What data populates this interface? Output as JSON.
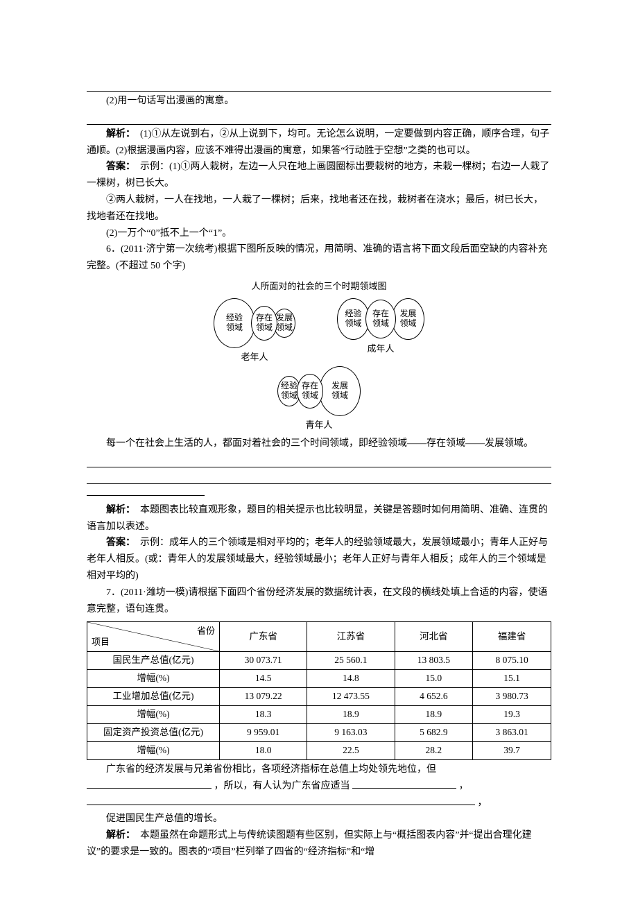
{
  "top": {
    "q2": "(2)用一句话写出漫画的寓意。",
    "ana_label": "解析：",
    "ana_text": "(1)①从左说到右，②从上说到下，均可。无论怎么说明，一定要做到内容正确，顺序合理，句子通顺。(2)根据漫画内容，应该不难得出漫画的寓意，如果答“行动胜于空想”之类的也可以。",
    "ans_label": "答案：",
    "ans1": "示例：(1)①两人栽树，左边一人只在地上画圆圈标出要栽树的地方，未栽一棵树；右边一人栽了一棵树，树已长大。",
    "ans2": "②两人栽树，一人在找地，一人栽了一棵树；后来，找地者还在找，栽树者在浇水；最后，树已长大，找地者还在找地。",
    "ans3": "(2)一万个“0”抵不上一个“1”。"
  },
  "q6": {
    "stem1": "6．(2011·济宁第一次统考)根据下图所反映的情况，用简明、准确的语言将下面文段后面空缺的内容补充完整。(不超过 50 个字)",
    "diagram_title": "人所面对的社会的三个时期领域图",
    "labels": {
      "exp": "经验\n领域",
      "exist": "存在\n领域",
      "dev": "发展\n领域"
    },
    "caps": {
      "old": "老年人",
      "adult": "成年人",
      "young": "青年人"
    },
    "lead": "每一个在社会上生活的人，都面对着社会的三个时间领域，即经验领域——存在领域——发展领域。",
    "ana_label": "解析：",
    "ana_text": "本题图表比较直观形象，题目的相关提示也比较明显，关键是答题时如何用简明、准确、连贯的语言加以表述。",
    "ans_label": "答案：",
    "ans_text": "示例：成年人的三个领域是相对平均的；老年人的经验领域最大，发展领域最小；青年人正好与老年人相反。(或：青年人的发展领域最大，经验领域最小；老年人正好与青年人相反；成年人的三个领域是相对平均的)"
  },
  "q7": {
    "stem": "7．(2011·潍坊一模)请根据下面四个省份经济发展的数据统计表，在文段的横线处填上合适的内容，使语意完整，语句连贯。",
    "header": {
      "diag_top": "省份",
      "diag_bot": "项目",
      "cols": [
        "广东省",
        "江苏省",
        "河北省",
        "福建省"
      ]
    },
    "rows": [
      {
        "label": "国民生产总值(亿元)",
        "v": [
          "30 073.71",
          "25 560.1",
          "13 803.5",
          "8 075.10"
        ]
      },
      {
        "label": "增幅(%)",
        "v": [
          "14.5",
          "14.8",
          "15.0",
          "15.1"
        ]
      },
      {
        "label": "工业增加总值(亿元)",
        "v": [
          "13 079.22",
          "12 473.55",
          "4 652.6",
          "3 980.73"
        ]
      },
      {
        "label": "增幅(%)",
        "v": [
          "18.3",
          "18.9",
          "18.9",
          "19.3"
        ]
      },
      {
        "label": "固定资产投资总值(亿元)",
        "v": [
          "9 959.01",
          "9 163.03",
          "5 682.9",
          "3 863.01"
        ]
      },
      {
        "label": "增幅(%)",
        "v": [
          "18.0",
          "22.5",
          "28.2",
          "39.7"
        ]
      }
    ],
    "p_start": "广东省的经济发展与兄弟省份相比，各项经济指标在总值上均处领先地位，但",
    "p_mid": "，所以，有人认为广东省应适当",
    "p_end2": "，",
    "p_last": "促进国民生产总值的增长。",
    "ana_label": "解析：",
    "ana_text": "本题虽然在命题形式上与传统读图题有些区别，但实际上与“概括图表内容”并“提出合理化建议”的要求是一致的。图表的“项目”栏列举了四省的“经济指标”和“增"
  },
  "ovals": {
    "old": {
      "exp": [
        58,
        70
      ],
      "exist": [
        36,
        48
      ],
      "dev": [
        30,
        40
      ]
    },
    "adult": {
      "exp": [
        45,
        58
      ],
      "exist": [
        42,
        54
      ],
      "dev": [
        45,
        58
      ]
    },
    "young": {
      "exp": [
        32,
        42
      ],
      "exist": [
        36,
        48
      ],
      "dev": [
        58,
        70
      ]
    },
    "overlap": -6
  }
}
